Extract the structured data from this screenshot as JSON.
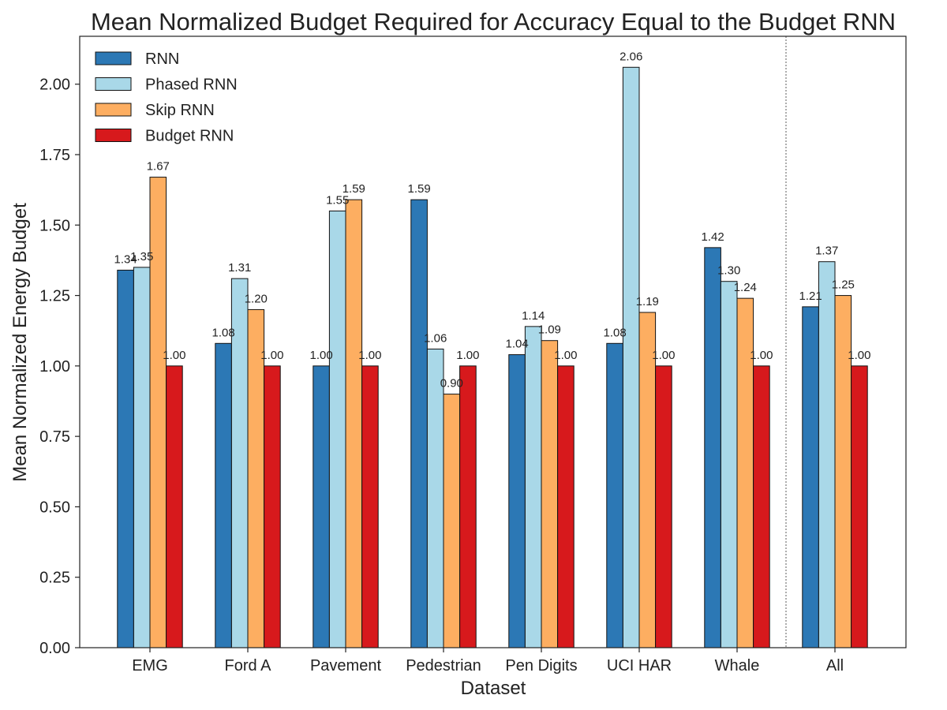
{
  "chart_data": {
    "type": "bar",
    "title": "Mean Normalized Budget Required for Accuracy Equal to the Budget RNN",
    "xlabel": "Dataset",
    "ylabel": "Mean Normalized Energy Budget",
    "ylim": [
      0,
      2.17
    ],
    "yticks": [
      "0.00",
      "0.25",
      "0.50",
      "0.75",
      "1.00",
      "1.25",
      "1.50",
      "1.75",
      "2.00"
    ],
    "grid": false,
    "legend_position": "top-left",
    "categories": [
      "EMG",
      "Ford A",
      "Pavement",
      "Pedestrian",
      "Pen Digits",
      "UCI HAR",
      "Whale",
      "All"
    ],
    "separator_before_category": "All",
    "series": [
      {
        "name": "RNN",
        "color": "#2c78b5",
        "values": [
          1.34,
          1.08,
          1.0,
          1.59,
          1.04,
          1.08,
          1.42,
          1.21
        ],
        "labels": [
          "1.34",
          "1.08",
          "1.00",
          "1.59",
          "1.04",
          "1.08",
          "1.42",
          "1.21"
        ]
      },
      {
        "name": "Phased RNN",
        "color": "#a9d8e8",
        "values": [
          1.35,
          1.31,
          1.55,
          1.06,
          1.14,
          2.06,
          1.3,
          1.37
        ],
        "labels": [
          "1.35",
          "1.31",
          "1.55",
          "1.06",
          "1.14",
          "2.06",
          "1.30",
          "1.37"
        ]
      },
      {
        "name": "Skip RNN",
        "color": "#fdae61",
        "values": [
          1.67,
          1.2,
          1.59,
          0.9,
          1.09,
          1.19,
          1.24,
          1.25
        ],
        "labels": [
          "1.67",
          "1.20",
          "1.59",
          "0.90",
          "1.09",
          "1.19",
          "1.24",
          "1.25"
        ]
      },
      {
        "name": "Budget RNN",
        "color": "#d7191c",
        "values": [
          1.0,
          1.0,
          1.0,
          1.0,
          1.0,
          1.0,
          1.0,
          1.0
        ],
        "labels": [
          "1.00",
          "1.00",
          "1.00",
          "1.00",
          "1.00",
          "1.00",
          "1.00",
          "1.00"
        ]
      }
    ]
  }
}
